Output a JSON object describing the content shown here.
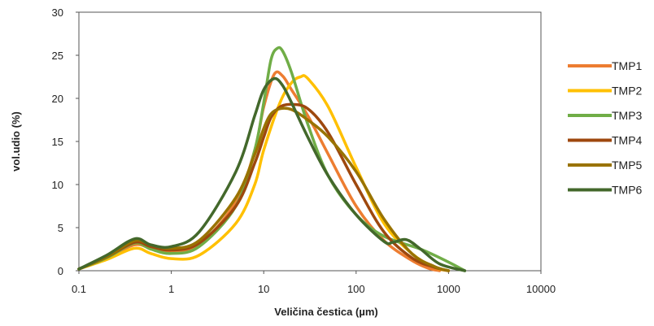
{
  "chart_data": {
    "type": "line",
    "title": "",
    "xlabel": "Veličina čestica (µm)",
    "ylabel": "vol.udio (%)",
    "x_scale": "log",
    "xlim": [
      0.1,
      10000
    ],
    "ylim": [
      0,
      30
    ],
    "x_ticks": [
      "0.1",
      "1",
      "10",
      "100",
      "1000",
      "10000"
    ],
    "y_ticks": [
      "0",
      "5",
      "10",
      "15",
      "20",
      "25",
      "30"
    ],
    "grid": false,
    "legend_position": "right",
    "series": [
      {
        "name": "TMP1",
        "color": "#ED7D31",
        "x": [
          0.1,
          0.2,
          0.4,
          0.6,
          1,
          2,
          5,
          8,
          10,
          13,
          16,
          20,
          30,
          50,
          100,
          200,
          400,
          600,
          800
        ],
        "y": [
          0.2,
          1.5,
          3.0,
          2.6,
          2.2,
          3.0,
          8.0,
          14.0,
          19.0,
          22.8,
          22.6,
          21.0,
          18.0,
          13.5,
          7.5,
          3.5,
          1.2,
          0.3,
          0
        ]
      },
      {
        "name": "TMP2",
        "color": "#FFC000",
        "x": [
          0.1,
          0.2,
          0.4,
          0.6,
          1,
          2,
          5,
          8,
          10,
          15,
          20,
          25,
          30,
          50,
          100,
          200,
          400,
          700,
          1000
        ],
        "y": [
          0.2,
          1.3,
          2.6,
          2.0,
          1.4,
          1.8,
          5.5,
          10.0,
          14.0,
          19.5,
          21.8,
          22.5,
          22.3,
          19.0,
          12.0,
          5.5,
          2.0,
          0.4,
          0
        ]
      },
      {
        "name": "TMP3",
        "color": "#70AD47",
        "x": [
          0.1,
          0.2,
          0.4,
          0.6,
          1,
          2,
          5,
          8,
          10,
          12,
          14,
          16,
          20,
          30,
          50,
          100,
          200,
          500,
          1000,
          1500
        ],
        "y": [
          0.2,
          1.5,
          3.2,
          2.5,
          2.0,
          2.8,
          7.5,
          14.0,
          19.5,
          24.5,
          25.8,
          25.5,
          23.0,
          17.0,
          11.0,
          6.5,
          4.0,
          2.5,
          1.0,
          0
        ]
      },
      {
        "name": "TMP4",
        "color": "#9E480E",
        "x": [
          0.1,
          0.2,
          0.4,
          0.6,
          1,
          2,
          5,
          8,
          10,
          12,
          15,
          20,
          30,
          50,
          100,
          200,
          400,
          700,
          1000
        ],
        "y": [
          0.2,
          1.6,
          3.3,
          2.8,
          2.4,
          3.2,
          7.5,
          12.5,
          15.5,
          17.8,
          19.0,
          19.3,
          18.8,
          16.0,
          10.0,
          4.5,
          1.5,
          0.4,
          0
        ]
      },
      {
        "name": "TMP5",
        "color": "#997300",
        "x": [
          0.1,
          0.2,
          0.4,
          0.6,
          1,
          2,
          5,
          8,
          10,
          12,
          15,
          20,
          30,
          50,
          100,
          200,
          400,
          700,
          1000
        ],
        "y": [
          0.2,
          1.6,
          3.5,
          3.0,
          2.6,
          3.5,
          8.5,
          13.5,
          16.5,
          18.2,
          18.8,
          18.7,
          17.5,
          15.5,
          11.5,
          6.0,
          2.0,
          0.5,
          0
        ]
      },
      {
        "name": "TMP6",
        "color": "#43682B",
        "x": [
          0.1,
          0.2,
          0.4,
          0.6,
          1,
          2,
          5,
          8,
          10,
          13,
          16,
          20,
          30,
          50,
          100,
          200,
          250,
          350,
          500,
          800,
          1500
        ],
        "y": [
          0.2,
          1.8,
          3.7,
          3.0,
          2.8,
          4.5,
          11.5,
          18.0,
          21.0,
          22.3,
          21.5,
          19.5,
          15.5,
          11.0,
          6.5,
          3.4,
          3.3,
          3.6,
          2.5,
          0.8,
          0
        ]
      }
    ]
  }
}
